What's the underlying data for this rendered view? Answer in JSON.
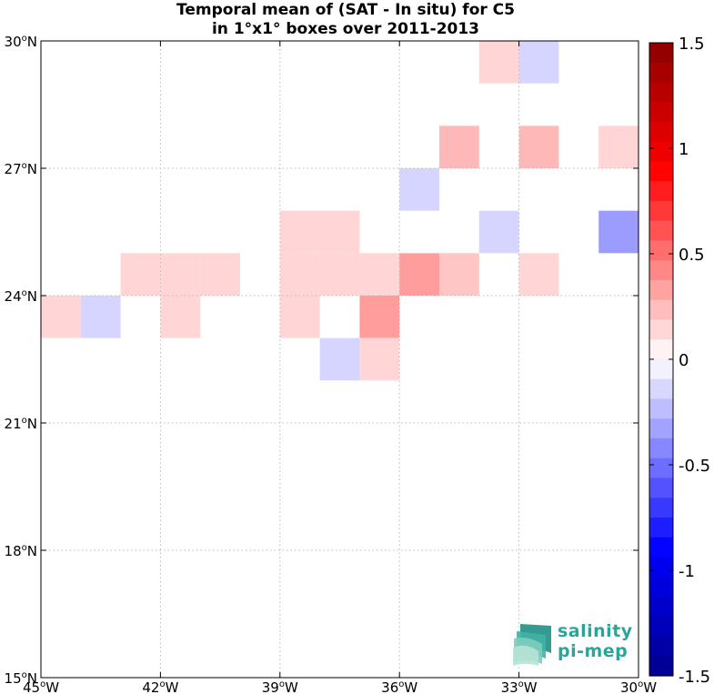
{
  "title": {
    "line1": "Temporal mean of (SAT - In situ) for C5",
    "line2": "in 1°x1° boxes over 2011-2013"
  },
  "map": {
    "lon_range": [
      -45,
      -30
    ],
    "lat_range": [
      15,
      30
    ],
    "lon_ticks": [
      {
        "value": -45,
        "deg": "45",
        "hem": "W"
      },
      {
        "value": -42,
        "deg": "42",
        "hem": "W"
      },
      {
        "value": -39,
        "deg": "39",
        "hem": "W"
      },
      {
        "value": -36,
        "deg": "36",
        "hem": "W"
      },
      {
        "value": -33,
        "deg": "33",
        "hem": "W"
      },
      {
        "value": -30,
        "deg": "30",
        "hem": "W"
      }
    ],
    "lat_ticks": [
      {
        "value": 15,
        "deg": "15",
        "hem": "N"
      },
      {
        "value": 18,
        "deg": "18",
        "hem": "N"
      },
      {
        "value": 21,
        "deg": "21",
        "hem": "N"
      },
      {
        "value": 24,
        "deg": "24",
        "hem": "N"
      },
      {
        "value": 27,
        "deg": "27",
        "hem": "N"
      },
      {
        "value": 30,
        "deg": "30",
        "hem": "N"
      }
    ],
    "grid": true,
    "cells": [
      {
        "lon": -34,
        "lat": 29,
        "value": 0.15
      },
      {
        "lon": -33,
        "lat": 29,
        "value": -0.15
      },
      {
        "lon": -35,
        "lat": 27,
        "value": 0.25
      },
      {
        "lon": -33,
        "lat": 27,
        "value": 0.25
      },
      {
        "lon": -31,
        "lat": 27,
        "value": 0.15
      },
      {
        "lon": -36,
        "lat": 26,
        "value": -0.15
      },
      {
        "lon": -39,
        "lat": 25,
        "value": 0.15
      },
      {
        "lon": -38,
        "lat": 25,
        "value": 0.15
      },
      {
        "lon": -34,
        "lat": 25,
        "value": -0.15
      },
      {
        "lon": -31,
        "lat": 25,
        "value": -0.35
      },
      {
        "lon": -43,
        "lat": 24,
        "value": 0.15
      },
      {
        "lon": -42,
        "lat": 24,
        "value": 0.15
      },
      {
        "lon": -41,
        "lat": 24,
        "value": 0.15
      },
      {
        "lon": -39,
        "lat": 24,
        "value": 0.15
      },
      {
        "lon": -38,
        "lat": 24,
        "value": 0.15
      },
      {
        "lon": -37,
        "lat": 24,
        "value": 0.15
      },
      {
        "lon": -36,
        "lat": 24,
        "value": 0.35
      },
      {
        "lon": -35,
        "lat": 24,
        "value": 0.2
      },
      {
        "lon": -33,
        "lat": 24,
        "value": 0.15
      },
      {
        "lon": -45,
        "lat": 23,
        "value": 0.15
      },
      {
        "lon": -44,
        "lat": 23,
        "value": -0.15
      },
      {
        "lon": -42,
        "lat": 23,
        "value": 0.15
      },
      {
        "lon": -39,
        "lat": 23,
        "value": 0.15
      },
      {
        "lon": -37,
        "lat": 23,
        "value": 0.35
      },
      {
        "lon": -38,
        "lat": 22,
        "value": -0.15
      },
      {
        "lon": -37,
        "lat": 22,
        "value": 0.15
      }
    ]
  },
  "colorbar": {
    "range": [
      -1.5,
      1.5
    ],
    "levels": 32,
    "ticks": [
      {
        "value": 1.5,
        "label": "1.5"
      },
      {
        "value": 1,
        "label": "1"
      },
      {
        "value": 0.5,
        "label": "0.5"
      },
      {
        "value": 0,
        "label": "0"
      },
      {
        "value": -0.5,
        "label": "-0.5"
      },
      {
        "value": -1,
        "label": "-1"
      },
      {
        "value": -1.5,
        "label": "-1.5"
      }
    ],
    "neg_color": "#0000ff",
    "pos_color": "#ff0000",
    "neg_extreme": "#00008b",
    "pos_extreme": "#8b0000",
    "neutral": "#ffffff"
  },
  "logo": {
    "line1": "salinity",
    "line2": "pi-mep",
    "color": "#2aa59a"
  }
}
